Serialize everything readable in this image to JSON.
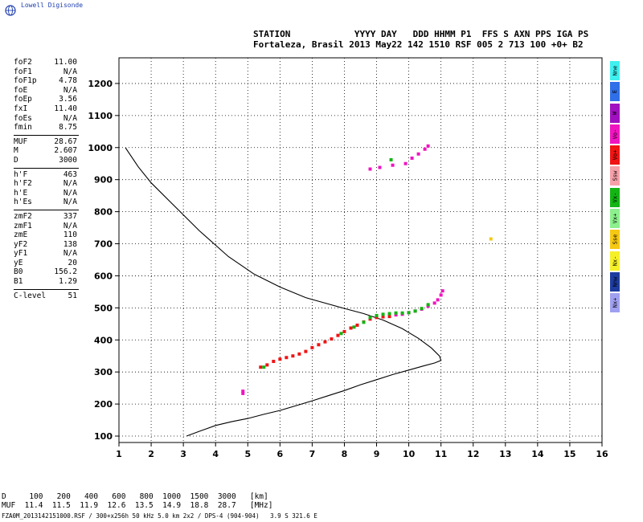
{
  "brand": {
    "name": "Lowell Digisonde"
  },
  "header": {
    "line1": "STATION            YYYY DAY   DDD HHMM P1  FFS S AXN PPS IGA PS",
    "line2": "Fortaleza, Brasil 2013 May22 142 1510 RSF 005 2 713 100 +0+ B2"
  },
  "params": [
    {
      "label": "foF2",
      "value": "11.00"
    },
    {
      "label": "foF1",
      "value": "N/A"
    },
    {
      "label": "foF1p",
      "value": "4.78"
    },
    {
      "label": "foE",
      "value": "N/A"
    },
    {
      "label": "foEp",
      "value": "3.56"
    },
    {
      "label": "fxI",
      "value": "11.40"
    },
    {
      "label": "foEs",
      "value": "N/A"
    },
    {
      "label": "fmin",
      "value": "8.75"
    },
    {
      "sep": true
    },
    {
      "label": "MUF",
      "value": "28.67"
    },
    {
      "label": "M",
      "value": "2.607"
    },
    {
      "label": "D",
      "value": "3000"
    },
    {
      "sep": true
    },
    {
      "label": "h'F",
      "value": "463"
    },
    {
      "label": "h'F2",
      "value": "N/A"
    },
    {
      "label": "h'E",
      "value": "N/A"
    },
    {
      "label": "h'Es",
      "value": "N/A"
    },
    {
      "sep": true
    },
    {
      "label": "zmF2",
      "value": "337"
    },
    {
      "label": "zmF1",
      "value": "N/A"
    },
    {
      "label": "zmE",
      "value": "110"
    },
    {
      "label": "yF2",
      "value": "138"
    },
    {
      "label": "yF1",
      "value": "N/A"
    },
    {
      "label": "yE",
      "value": "20"
    },
    {
      "label": "B0",
      "value": "156.2"
    },
    {
      "label": "B1",
      "value": "1.29"
    },
    {
      "sep": true
    },
    {
      "label": "C-level",
      "value": "51"
    }
  ],
  "legend": [
    {
      "label": "Nne",
      "color": "#3ff0f0"
    },
    {
      "label": "E",
      "color": "#2f6fe8"
    },
    {
      "label": "W",
      "color": "#a010c0"
    },
    {
      "label": "Vo-",
      "color": "#f014c0"
    },
    {
      "label": "Vo+",
      "color": "#f01414"
    },
    {
      "label": "Ssw",
      "color": "#f5a0a8"
    },
    {
      "label": "Vx-",
      "color": "#14b414"
    },
    {
      "label": "Vx+",
      "color": "#8cf08c"
    },
    {
      "label": "Sse",
      "color": "#f5c814"
    },
    {
      "label": "Nx-",
      "color": "#f5f028"
    },
    {
      "label": "Nnw",
      "color": "#1e3ca0"
    },
    {
      "label": "Nx+",
      "color": "#a0a0f0"
    }
  ],
  "bottom_table": {
    "line1": "D     100   200   400   600   800  1000  1500  3000   [km]",
    "line2": "MUF  11.4  11.5  11.9  12.6  13.5  14.9  18.8  28.7   [MHz]"
  },
  "footer": "FZA0M_2013142151000.RSF / 300+x256h 50 kHz 5.0 km 2x2 / DPS-4 (904-904)   3.9 S 321.6 E",
  "chart_data": {
    "type": "scatter",
    "xlim": [
      1,
      16
    ],
    "ylim": [
      80,
      1280
    ],
    "x_ticks": [
      1,
      2,
      3,
      4,
      5,
      6,
      7,
      8,
      9,
      10,
      11,
      12,
      13,
      14,
      15,
      16
    ],
    "y_ticks": [
      100,
      200,
      300,
      400,
      500,
      600,
      700,
      800,
      900,
      1000,
      1100,
      1200
    ],
    "grid": true,
    "profile": {
      "color": "#000000",
      "x": [
        3.1,
        3.5,
        4.0,
        4.5,
        5.0,
        5.5,
        6.0,
        6.5,
        7.0,
        7.5,
        8.0,
        8.5,
        9.0,
        9.5,
        10.0,
        10.5,
        10.8,
        11.0,
        10.95,
        10.7,
        10.3,
        9.8,
        9.2,
        8.6,
        8.0,
        7.4,
        6.8,
        6.0,
        5.2,
        4.4,
        3.5,
        2.6,
        2.0,
        1.6,
        1.2
      ],
      "y": [
        100,
        115,
        133,
        145,
        155,
        168,
        180,
        195,
        210,
        226,
        242,
        260,
        276,
        292,
        306,
        320,
        328,
        336,
        350,
        375,
        405,
        435,
        462,
        482,
        498,
        515,
        532,
        565,
        605,
        660,
        740,
        830,
        890,
        940,
        1000
      ]
    },
    "traces": [
      {
        "name": "Vo+",
        "color": "#f01414",
        "x": [
          5.4,
          5.6,
          5.8,
          6.0,
          6.2,
          6.4,
          6.6,
          6.8,
          7.0,
          7.2,
          7.4,
          7.6,
          7.8,
          8.0,
          8.2,
          8.4,
          8.6,
          8.8,
          9.0,
          9.2,
          9.4
        ],
        "y": [
          315,
          322,
          333,
          340,
          345,
          350,
          356,
          364,
          376,
          385,
          394,
          403,
          414,
          426,
          437,
          446,
          456,
          465,
          470,
          472,
          473
        ]
      },
      {
        "name": "Vo-",
        "color": "#f014c0",
        "x": [
          9.6,
          9.8,
          10.0,
          10.2,
          10.4,
          10.6,
          10.8,
          10.9,
          11.0,
          11.05
        ],
        "y": [
          478,
          480,
          485,
          490,
          496,
          505,
          515,
          525,
          540,
          553
        ]
      },
      {
        "name": "Vx-",
        "color": "#14b414",
        "x": [
          5.5,
          7.9,
          8.3,
          8.6,
          8.8,
          9.0,
          9.2,
          9.4,
          9.6,
          9.8,
          10.0,
          10.2,
          10.4,
          10.6
        ],
        "y": [
          315,
          420,
          440,
          455,
          470,
          476,
          480,
          482,
          484,
          484,
          485,
          490,
          498,
          510
        ]
      },
      {
        "name": "Vo-",
        "color": "#f014c0",
        "x": [
          4.85,
          4.85,
          8.8,
          9.1,
          9.5,
          9.9,
          10.1,
          10.3,
          10.5,
          10.6
        ],
        "y": [
          233,
          240,
          933,
          938,
          945,
          950,
          967,
          980,
          995,
          1005
        ]
      },
      {
        "name": "Vx-",
        "color": "#14b414",
        "x": [
          9.45
        ],
        "y": [
          962
        ]
      },
      {
        "name": "Sse",
        "color": "#f5c814",
        "x": [
          12.55
        ],
        "y": [
          715
        ]
      }
    ]
  }
}
